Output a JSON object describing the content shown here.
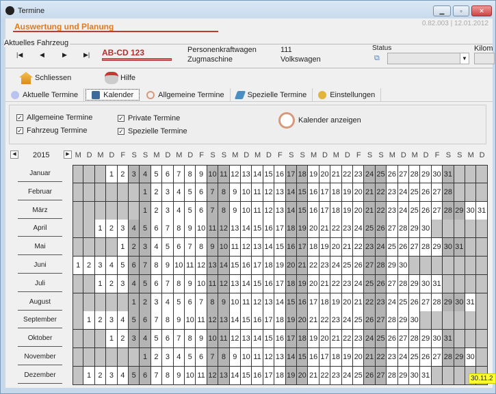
{
  "window": {
    "title": "Termine"
  },
  "header": {
    "app_title": "Auswertung und Planung",
    "version": "0.82.003 | 12.01.2012"
  },
  "vehicle": {
    "group_label": "Aktuelles Fahrzeug",
    "nav": [
      "first",
      "previous",
      "next",
      "last"
    ],
    "plate": "AB-CD 123",
    "type1": "Personenkraftwagen",
    "type2": "Zugmaschine",
    "code": "111",
    "make": "Volkswagen",
    "status_label": "Status",
    "status_value": "",
    "km_label": "Kilom"
  },
  "toolbar": {
    "close_label": "Schliessen",
    "help_label": "Hilfe"
  },
  "tabs": [
    {
      "label": "Aktuelle Termine",
      "icon": "bulb-icon"
    },
    {
      "label": "Kalender",
      "icon": "calendar-icon",
      "active": true
    },
    {
      "label": "Allgemeine Termine",
      "icon": "clock-icon"
    },
    {
      "label": "Spezielle Termine",
      "icon": "tag-icon"
    },
    {
      "label": "Einstellungen",
      "icon": "settings-icon"
    }
  ],
  "filters": [
    {
      "label": "Allgemeine Termine",
      "checked": true
    },
    {
      "label": "Fahrzeug Termine",
      "checked": true
    },
    {
      "label": "Private Termine",
      "checked": true
    },
    {
      "label": "Spezielle Termine",
      "checked": true
    }
  ],
  "show_calendar_label": "Kalender anzeigen",
  "calendar": {
    "year": "2015",
    "weekday_header": [
      "M",
      "D",
      "M",
      "D",
      "F",
      "S",
      "S",
      "M",
      "D",
      "M",
      "D",
      "F",
      "S",
      "S",
      "M",
      "D",
      "M",
      "D",
      "F",
      "S",
      "S",
      "M",
      "D",
      "M",
      "D",
      "F",
      "S",
      "S",
      "M",
      "D",
      "M",
      "D",
      "F",
      "S",
      "S",
      "M",
      "D"
    ],
    "months": [
      {
        "name": "Januar",
        "first_weekday": 3,
        "days": 31
      },
      {
        "name": "Februar",
        "first_weekday": 6,
        "days": 28
      },
      {
        "name": "März",
        "first_weekday": 6,
        "days": 31
      },
      {
        "name": "April",
        "first_weekday": 2,
        "days": 30
      },
      {
        "name": "Mai",
        "first_weekday": 4,
        "days": 31
      },
      {
        "name": "Juni",
        "first_weekday": 0,
        "days": 30
      },
      {
        "name": "Juli",
        "first_weekday": 2,
        "days": 31
      },
      {
        "name": "August",
        "first_weekday": 5,
        "days": 31
      },
      {
        "name": "September",
        "first_weekday": 1,
        "days": 30
      },
      {
        "name": "Oktober",
        "first_weekday": 3,
        "days": 31
      },
      {
        "name": "November",
        "first_weekday": 6,
        "days": 30
      },
      {
        "name": "Dezember",
        "first_weekday": 1,
        "days": 31
      }
    ],
    "tooltip": "30.11.2",
    "colors": {
      "weekday": "#ffffff",
      "weekend": "#b4b4b4",
      "empty": "#c4c4c4"
    }
  }
}
